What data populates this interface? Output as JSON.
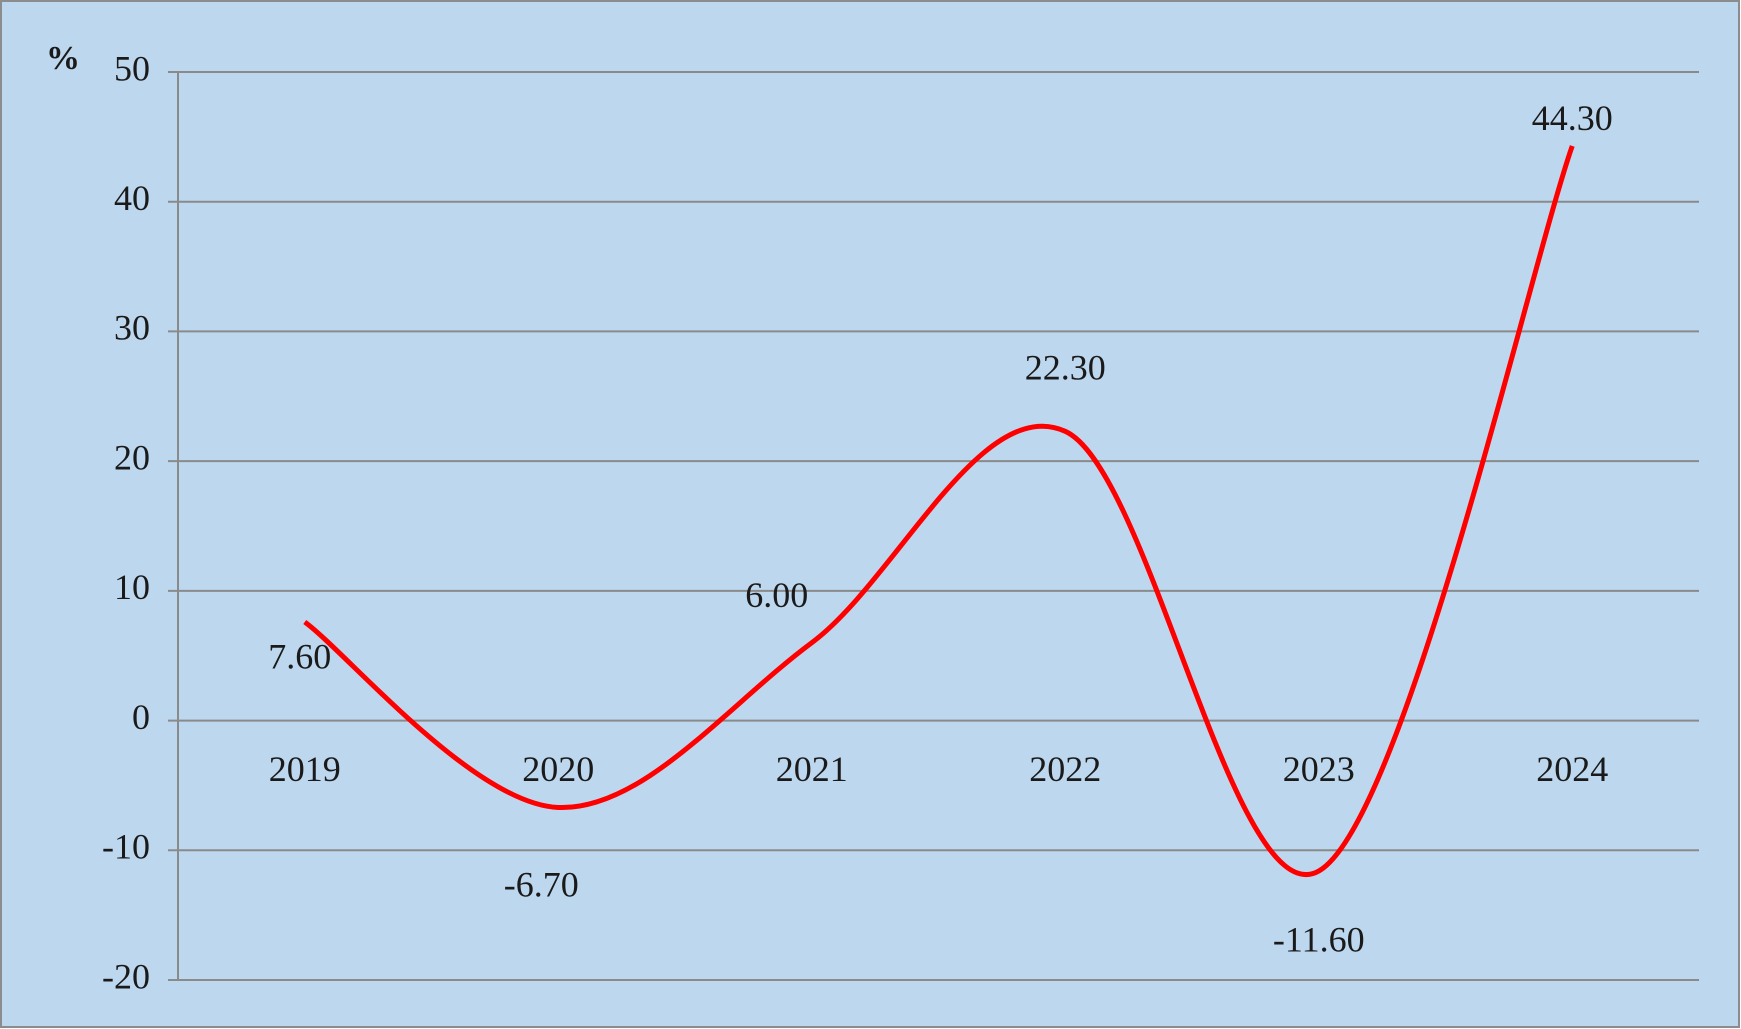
{
  "chart_data": {
    "type": "line",
    "y_label": "%",
    "categories": [
      "2019",
      "2020",
      "2021",
      "2022",
      "2023",
      "2024"
    ],
    "values": [
      7.6,
      -6.7,
      6.0,
      22.3,
      -11.6,
      44.3
    ],
    "value_labels": [
      "7.60",
      "-6.70",
      "6.00",
      "22.30",
      "-11.60",
      "44.30"
    ],
    "color": "#ff0000",
    "smooth": true,
    "ylim": [
      -20,
      50
    ],
    "yticks": [
      -20,
      -10,
      0,
      10,
      20,
      30,
      40,
      50
    ],
    "grid": true
  }
}
